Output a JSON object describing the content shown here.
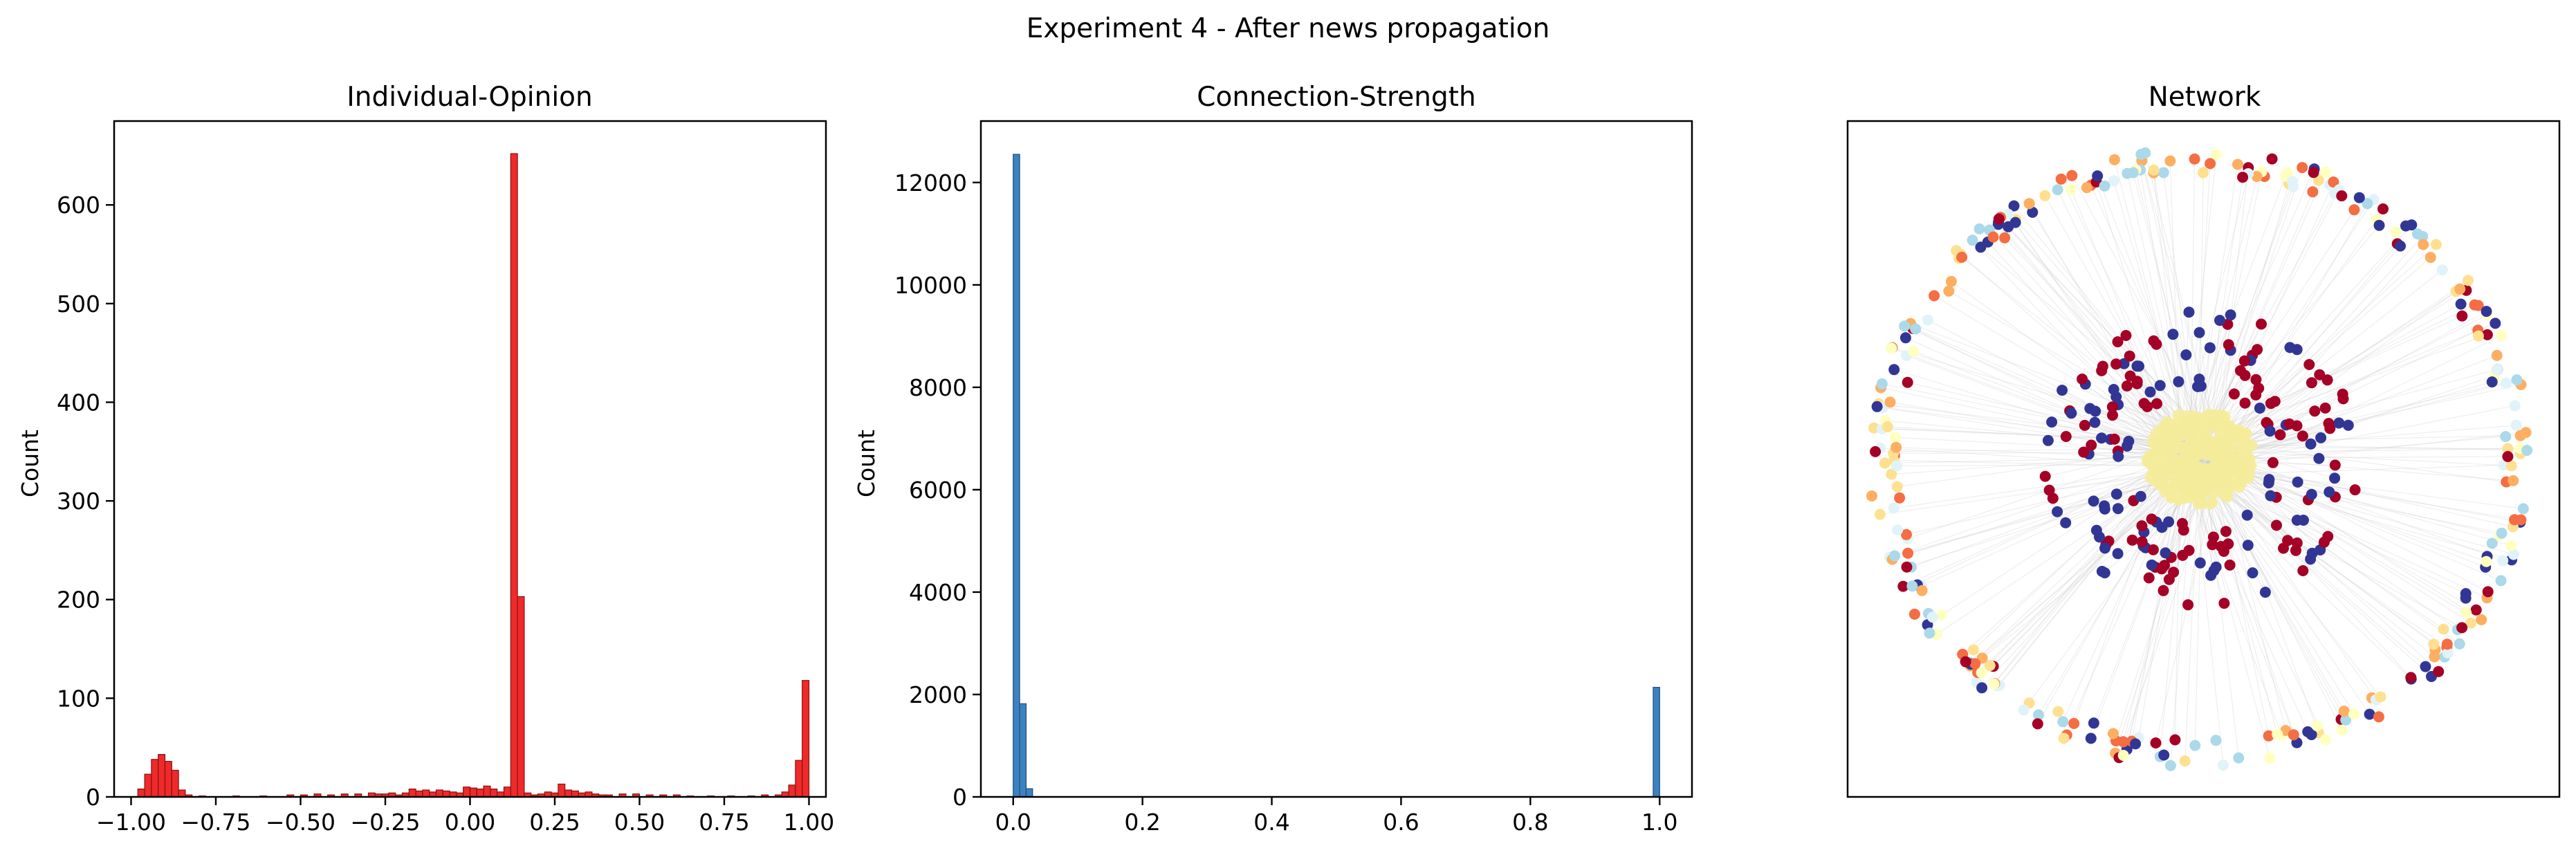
{
  "figure": {
    "suptitle": "Experiment 4 - After news propagation"
  },
  "chart_data": [
    {
      "type": "bar",
      "title": "Individual-Opinion",
      "xlabel": "",
      "ylabel": "Count",
      "xlim": [
        -1.05,
        1.05
      ],
      "ylim": [
        0,
        685
      ],
      "xticks": [
        -1.0,
        -0.75,
        -0.5,
        -0.25,
        0.0,
        0.25,
        0.5,
        0.75,
        1.0
      ],
      "xtick_labels": [
        "−1.00",
        "−0.75",
        "−0.50",
        "−0.25",
        "0.00",
        "0.25",
        "0.50",
        "0.75",
        "1.00"
      ],
      "yticks": [
        0,
        100,
        200,
        300,
        400,
        500,
        600
      ],
      "ytick_labels": [
        "0",
        "100",
        "200",
        "300",
        "400",
        "500",
        "600"
      ],
      "bin_width": 0.02,
      "color": "#ee2a2a",
      "edge_color": "#8a1010",
      "bins": [
        {
          "x": -0.98,
          "count": 8
        },
        {
          "x": -0.96,
          "count": 23
        },
        {
          "x": -0.94,
          "count": 38
        },
        {
          "x": -0.92,
          "count": 43
        },
        {
          "x": -0.9,
          "count": 36
        },
        {
          "x": -0.88,
          "count": 27
        },
        {
          "x": -0.86,
          "count": 7
        },
        {
          "x": -0.84,
          "count": 2
        },
        {
          "x": -0.8,
          "count": 1
        },
        {
          "x": -0.7,
          "count": 1
        },
        {
          "x": -0.62,
          "count": 1
        },
        {
          "x": -0.54,
          "count": 2
        },
        {
          "x": -0.5,
          "count": 2
        },
        {
          "x": -0.46,
          "count": 3
        },
        {
          "x": -0.42,
          "count": 2
        },
        {
          "x": -0.38,
          "count": 3
        },
        {
          "x": -0.34,
          "count": 3
        },
        {
          "x": -0.3,
          "count": 4
        },
        {
          "x": -0.28,
          "count": 3
        },
        {
          "x": -0.26,
          "count": 3
        },
        {
          "x": -0.24,
          "count": 4
        },
        {
          "x": -0.22,
          "count": 2
        },
        {
          "x": -0.2,
          "count": 4
        },
        {
          "x": -0.18,
          "count": 8
        },
        {
          "x": -0.16,
          "count": 6
        },
        {
          "x": -0.14,
          "count": 7
        },
        {
          "x": -0.12,
          "count": 5
        },
        {
          "x": -0.1,
          "count": 7
        },
        {
          "x": -0.08,
          "count": 6
        },
        {
          "x": -0.06,
          "count": 5
        },
        {
          "x": -0.04,
          "count": 4
        },
        {
          "x": -0.02,
          "count": 10
        },
        {
          "x": 0.0,
          "count": 9
        },
        {
          "x": 0.02,
          "count": 8
        },
        {
          "x": 0.04,
          "count": 11
        },
        {
          "x": 0.06,
          "count": 8
        },
        {
          "x": 0.08,
          "count": 5
        },
        {
          "x": 0.1,
          "count": 10
        },
        {
          "x": 0.12,
          "count": 652
        },
        {
          "x": 0.14,
          "count": 203
        },
        {
          "x": 0.16,
          "count": 4
        },
        {
          "x": 0.18,
          "count": 2
        },
        {
          "x": 0.2,
          "count": 3
        },
        {
          "x": 0.22,
          "count": 5
        },
        {
          "x": 0.24,
          "count": 4
        },
        {
          "x": 0.26,
          "count": 13
        },
        {
          "x": 0.28,
          "count": 7
        },
        {
          "x": 0.3,
          "count": 6
        },
        {
          "x": 0.32,
          "count": 4
        },
        {
          "x": 0.34,
          "count": 5
        },
        {
          "x": 0.36,
          "count": 3
        },
        {
          "x": 0.38,
          "count": 2
        },
        {
          "x": 0.4,
          "count": 2
        },
        {
          "x": 0.44,
          "count": 3
        },
        {
          "x": 0.48,
          "count": 3
        },
        {
          "x": 0.52,
          "count": 2
        },
        {
          "x": 0.56,
          "count": 2
        },
        {
          "x": 0.6,
          "count": 2
        },
        {
          "x": 0.64,
          "count": 1
        },
        {
          "x": 0.7,
          "count": 1
        },
        {
          "x": 0.76,
          "count": 1
        },
        {
          "x": 0.82,
          "count": 1
        },
        {
          "x": 0.86,
          "count": 2
        },
        {
          "x": 0.9,
          "count": 2
        },
        {
          "x": 0.92,
          "count": 5
        },
        {
          "x": 0.94,
          "count": 12
        },
        {
          "x": 0.96,
          "count": 37
        },
        {
          "x": 0.98,
          "count": 118
        }
      ]
    },
    {
      "type": "bar",
      "title": "Connection-Strength",
      "xlabel": "",
      "ylabel": "Count",
      "xlim": [
        -0.05,
        1.05
      ],
      "ylim": [
        0,
        13200
      ],
      "xticks": [
        0.0,
        0.2,
        0.4,
        0.6,
        0.8,
        1.0
      ],
      "xtick_labels": [
        "0.0",
        "0.2",
        "0.4",
        "0.6",
        "0.8",
        "1.0"
      ],
      "yticks": [
        0,
        2000,
        4000,
        6000,
        8000,
        10000,
        12000
      ],
      "ytick_labels": [
        "0",
        "2000",
        "4000",
        "6000",
        "8000",
        "10000",
        "12000"
      ],
      "bin_width": 0.01,
      "color": "#3d82c0",
      "edge_color": "#1f4f7a",
      "bins": [
        {
          "x": 0.0,
          "count": 12550
        },
        {
          "x": 0.01,
          "count": 1820
        },
        {
          "x": 0.02,
          "count": 160
        },
        {
          "x": 0.99,
          "count": 2140
        }
      ]
    },
    {
      "type": "scatter",
      "title": "Network",
      "xlabel": "",
      "ylabel": "",
      "node_colors": [
        "#a50026",
        "#313695",
        "#fee090",
        "#abd9e9",
        "#fdae61",
        "#ffffbf",
        "#f46d43",
        "#e0f3f8"
      ],
      "core_color": "#f5ec9b",
      "edge_color": "#cfcfcf"
    }
  ]
}
